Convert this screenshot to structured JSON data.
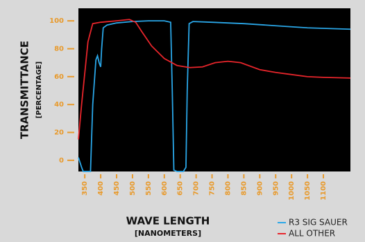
{
  "chart_data": {
    "type": "line",
    "y_label": "TRANSMITTANCE",
    "y_sublabel": "[PERCENTAGE]",
    "x_label": "WAVE LENGTH",
    "x_sublabel": "[NANOMETERS]",
    "xlim": [
      330,
      1185
    ],
    "ylim": [
      -8,
      109
    ],
    "xticks": [
      350,
      400,
      450,
      500,
      550,
      600,
      650,
      700,
      750,
      800,
      850,
      900,
      950,
      1000,
      1050,
      1100
    ],
    "yticks": [
      0,
      20,
      40,
      60,
      80,
      100
    ],
    "series": [
      {
        "name": "R3 SIG SAUER",
        "color": "#2aa7e8",
        "x": [
          330,
          340,
          345,
          360,
          368,
          375,
          385,
          390,
          395,
          400,
          403,
          408,
          420,
          450,
          500,
          550,
          600,
          620,
          625,
          630,
          640,
          660,
          668,
          672,
          678,
          690,
          750,
          850,
          950,
          1050,
          1185
        ],
        "values": [
          2,
          -5,
          -8,
          -8,
          -8,
          40,
          72,
          75,
          70,
          67,
          80,
          95,
          97,
          98.5,
          99.5,
          100,
          100,
          99,
          50,
          -7,
          -8,
          -8,
          -5,
          50,
          98,
          99.5,
          99,
          98,
          96.5,
          95,
          94
        ]
      },
      {
        "name": "ALL OTHER",
        "color": "#e8252b",
        "x": [
          330,
          340,
          360,
          375,
          400,
          450,
          490,
          510,
          530,
          560,
          600,
          640,
          680,
          720,
          760,
          800,
          840,
          900,
          950,
          1000,
          1050,
          1100,
          1185
        ],
        "values": [
          15,
          40,
          85,
          98,
          99,
          100,
          101,
          99,
          92,
          82,
          73,
          68,
          66.5,
          67,
          70,
          71,
          70,
          65,
          63,
          61.5,
          60,
          59.5,
          59
        ]
      }
    ]
  }
}
